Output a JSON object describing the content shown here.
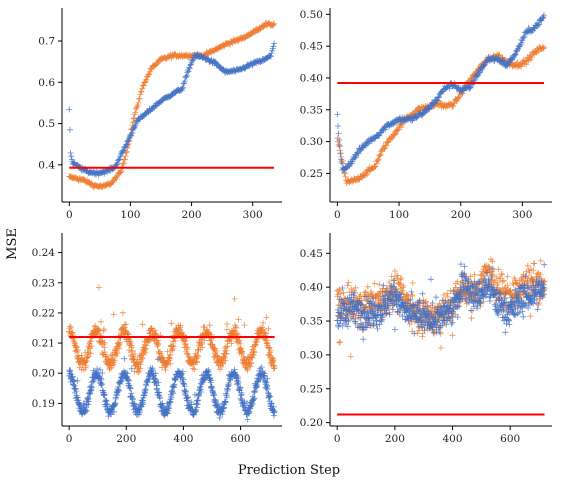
{
  "figure": {
    "xlabel": "Prediction Step",
    "ylabel": "MSE",
    "colors": {
      "series_a": "#4472C4",
      "series_b": "#ED7D31",
      "reference": "#FF0000"
    }
  },
  "chart_data": [
    {
      "type": "scatter",
      "panel": "top-left",
      "xlim": [
        -12,
        348
      ],
      "ylim": [
        0.31,
        0.78
      ],
      "xticks": [
        0,
        100,
        200,
        300
      ],
      "yticks": [
        0.4,
        0.5,
        0.6,
        0.7
      ],
      "ytick_labels": [
        "0.4",
        "0.5",
        "0.6",
        "0.7"
      ],
      "hline": 0.393,
      "n_points": 336,
      "series": [
        {
          "color": "series_a",
          "keypoints": [
            [
              0,
              0.537
            ],
            [
              2,
              0.43
            ],
            [
              5,
              0.405
            ],
            [
              15,
              0.395
            ],
            [
              30,
              0.383
            ],
            [
              45,
              0.38
            ],
            [
              60,
              0.384
            ],
            [
              75,
              0.395
            ],
            [
              90,
              0.44
            ],
            [
              100,
              0.47
            ],
            [
              110,
              0.505
            ],
            [
              130,
              0.53
            ],
            [
              150,
              0.555
            ],
            [
              170,
              0.573
            ],
            [
              185,
              0.585
            ],
            [
              195,
              0.63
            ],
            [
              205,
              0.665
            ],
            [
              220,
              0.66
            ],
            [
              240,
              0.645
            ],
            [
              255,
              0.625
            ],
            [
              275,
              0.628
            ],
            [
              300,
              0.645
            ],
            [
              320,
              0.655
            ],
            [
              330,
              0.665
            ],
            [
              335,
              0.695
            ]
          ]
        },
        {
          "color": "series_b",
          "keypoints": [
            [
              0,
              0.37
            ],
            [
              10,
              0.368
            ],
            [
              25,
              0.362
            ],
            [
              40,
              0.35
            ],
            [
              55,
              0.347
            ],
            [
              70,
              0.357
            ],
            [
              85,
              0.385
            ],
            [
              95,
              0.44
            ],
            [
              105,
              0.51
            ],
            [
              120,
              0.59
            ],
            [
              135,
              0.635
            ],
            [
              150,
              0.655
            ],
            [
              170,
              0.665
            ],
            [
              200,
              0.665
            ],
            [
              220,
              0.665
            ],
            [
              240,
              0.68
            ],
            [
              260,
              0.695
            ],
            [
              280,
              0.705
            ],
            [
              300,
              0.72
            ],
            [
              320,
              0.74
            ],
            [
              335,
              0.74
            ]
          ]
        }
      ]
    },
    {
      "type": "scatter",
      "panel": "top-right",
      "xlim": [
        -12,
        348
      ],
      "ylim": [
        0.205,
        0.51
      ],
      "xticks": [
        0,
        100,
        200,
        300
      ],
      "yticks": [
        0.25,
        0.3,
        0.35,
        0.4,
        0.45,
        0.5
      ],
      "ytick_labels": [
        "0.25",
        "0.30",
        "0.35",
        "0.40",
        "0.45",
        "0.50"
      ],
      "hline": 0.392,
      "n_points": 336,
      "series": [
        {
          "color": "series_a",
          "keypoints": [
            [
              0,
              0.34
            ],
            [
              3,
              0.3
            ],
            [
              8,
              0.255
            ],
            [
              20,
              0.265
            ],
            [
              35,
              0.285
            ],
            [
              50,
              0.3
            ],
            [
              65,
              0.31
            ],
            [
              80,
              0.325
            ],
            [
              100,
              0.335
            ],
            [
              120,
              0.335
            ],
            [
              140,
              0.345
            ],
            [
              160,
              0.365
            ],
            [
              175,
              0.385
            ],
            [
              190,
              0.39
            ],
            [
              200,
              0.38
            ],
            [
              215,
              0.385
            ],
            [
              230,
              0.41
            ],
            [
              245,
              0.43
            ],
            [
              260,
              0.43
            ],
            [
              275,
              0.42
            ],
            [
              290,
              0.44
            ],
            [
              305,
              0.47
            ],
            [
              320,
              0.48
            ],
            [
              330,
              0.49
            ],
            [
              335,
              0.497
            ]
          ]
        },
        {
          "color": "series_b",
          "keypoints": [
            [
              0,
              0.305
            ],
            [
              5,
              0.28
            ],
            [
              15,
              0.235
            ],
            [
              30,
              0.24
            ],
            [
              45,
              0.25
            ],
            [
              60,
              0.26
            ],
            [
              75,
              0.29
            ],
            [
              90,
              0.31
            ],
            [
              110,
              0.335
            ],
            [
              130,
              0.35
            ],
            [
              150,
              0.355
            ],
            [
              165,
              0.36
            ],
            [
              175,
              0.355
            ],
            [
              190,
              0.36
            ],
            [
              210,
              0.39
            ],
            [
              230,
              0.415
            ],
            [
              245,
              0.43
            ],
            [
              260,
              0.435
            ],
            [
              275,
              0.425
            ],
            [
              290,
              0.42
            ],
            [
              305,
              0.425
            ],
            [
              320,
              0.44
            ],
            [
              335,
              0.45
            ]
          ]
        }
      ]
    },
    {
      "type": "scatter",
      "panel": "bottom-left",
      "xlim": [
        -25,
        745
      ],
      "ylim": [
        0.1825,
        0.2465
      ],
      "xticks": [
        0,
        200,
        400,
        600
      ],
      "yticks": [
        0.19,
        0.2,
        0.21,
        0.22,
        0.23,
        0.24
      ],
      "ytick_labels": [
        "0.19",
        "0.20",
        "0.21",
        "0.22",
        "0.23",
        "0.24"
      ],
      "hline": 0.212,
      "n_points": 720,
      "series": [
        {
          "color": "series_a",
          "base": 0.1935,
          "amplitude": 0.0065,
          "period": 96,
          "noise": 0.0018
        },
        {
          "color": "series_b",
          "base": 0.2085,
          "amplitude": 0.0055,
          "period": 96,
          "noise": 0.0025
        }
      ]
    },
    {
      "type": "scatter",
      "panel": "bottom-right",
      "xlim": [
        -25,
        745
      ],
      "ylim": [
        0.195,
        0.48
      ],
      "xticks": [
        0,
        200,
        400,
        600
      ],
      "yticks": [
        0.2,
        0.25,
        0.3,
        0.35,
        0.4,
        0.45
      ],
      "ytick_labels": [
        "0.20",
        "0.25",
        "0.30",
        "0.35",
        "0.40",
        "0.45"
      ],
      "hline": 0.212,
      "n_points": 720,
      "series": [
        {
          "color": "series_a",
          "keypoints": [
            [
              0,
              0.355
            ],
            [
              50,
              0.37
            ],
            [
              100,
              0.36
            ],
            [
              150,
              0.365
            ],
            [
              200,
              0.39
            ],
            [
              240,
              0.36
            ],
            [
              280,
              0.36
            ],
            [
              320,
              0.35
            ],
            [
              360,
              0.355
            ],
            [
              400,
              0.365
            ],
            [
              440,
              0.41
            ],
            [
              480,
              0.385
            ],
            [
              520,
              0.4
            ],
            [
              560,
              0.375
            ],
            [
              600,
              0.365
            ],
            [
              640,
              0.385
            ],
            [
              680,
              0.39
            ],
            [
              719,
              0.395
            ]
          ],
          "noise": 0.018
        },
        {
          "color": "series_b",
          "keypoints": [
            [
              0,
              0.375
            ],
            [
              50,
              0.37
            ],
            [
              100,
              0.37
            ],
            [
              150,
              0.38
            ],
            [
              200,
              0.4
            ],
            [
              240,
              0.375
            ],
            [
              280,
              0.365
            ],
            [
              320,
              0.355
            ],
            [
              360,
              0.36
            ],
            [
              400,
              0.375
            ],
            [
              440,
              0.4
            ],
            [
              480,
              0.39
            ],
            [
              520,
              0.42
            ],
            [
              560,
              0.4
            ],
            [
              600,
              0.39
            ],
            [
              640,
              0.4
            ],
            [
              680,
              0.41
            ],
            [
              719,
              0.405
            ]
          ],
          "noise": 0.022
        }
      ]
    }
  ]
}
